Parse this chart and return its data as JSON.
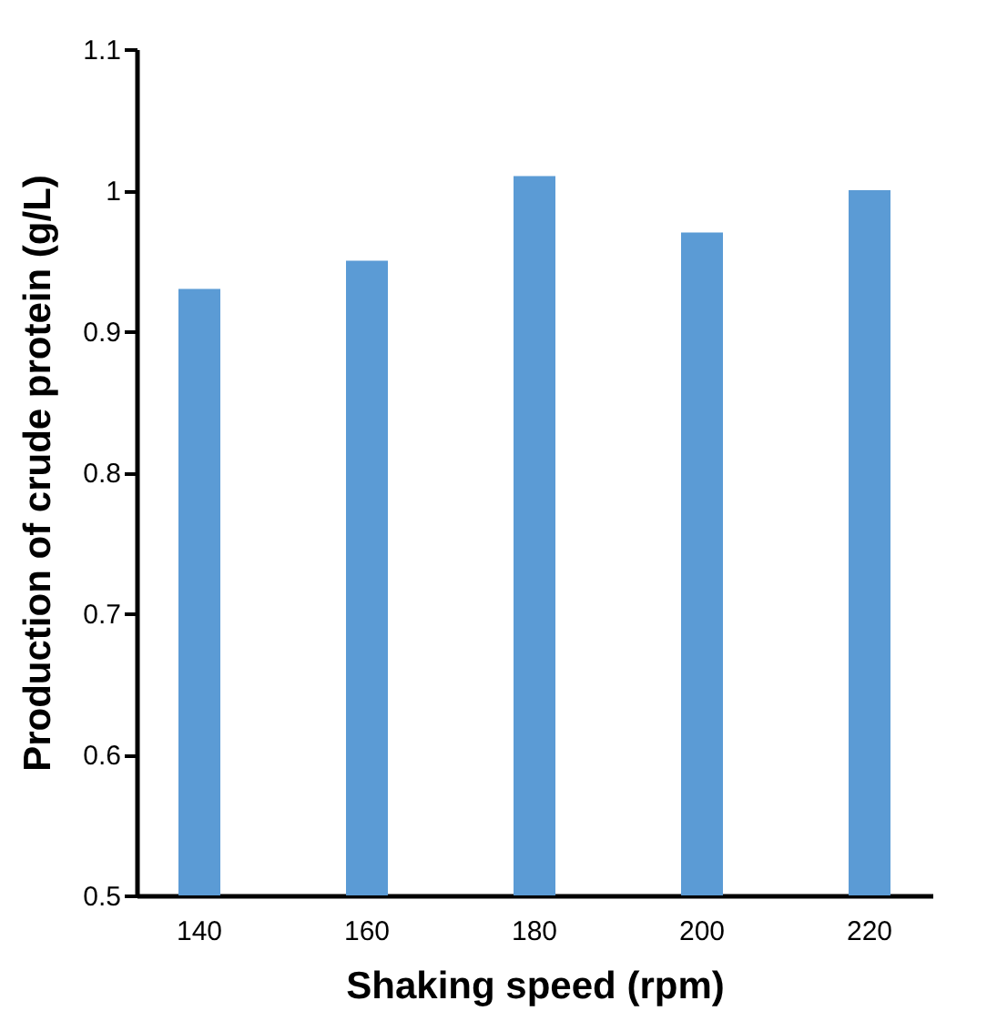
{
  "chart_data": {
    "type": "bar",
    "xlabel": "Shaking speed (rpm)",
    "ylabel": "Production of crude protein (g/L)",
    "categories": [
      "140",
      "160",
      "180",
      "200",
      "220"
    ],
    "values": [
      0.93,
      0.95,
      1.01,
      0.97,
      1.0
    ],
    "color": "#5b9bd5",
    "ylim": [
      0.5,
      1.1
    ],
    "yticks": [
      0.5,
      0.6,
      0.7,
      0.8,
      0.9,
      1,
      1.1
    ],
    "grid": false
  }
}
